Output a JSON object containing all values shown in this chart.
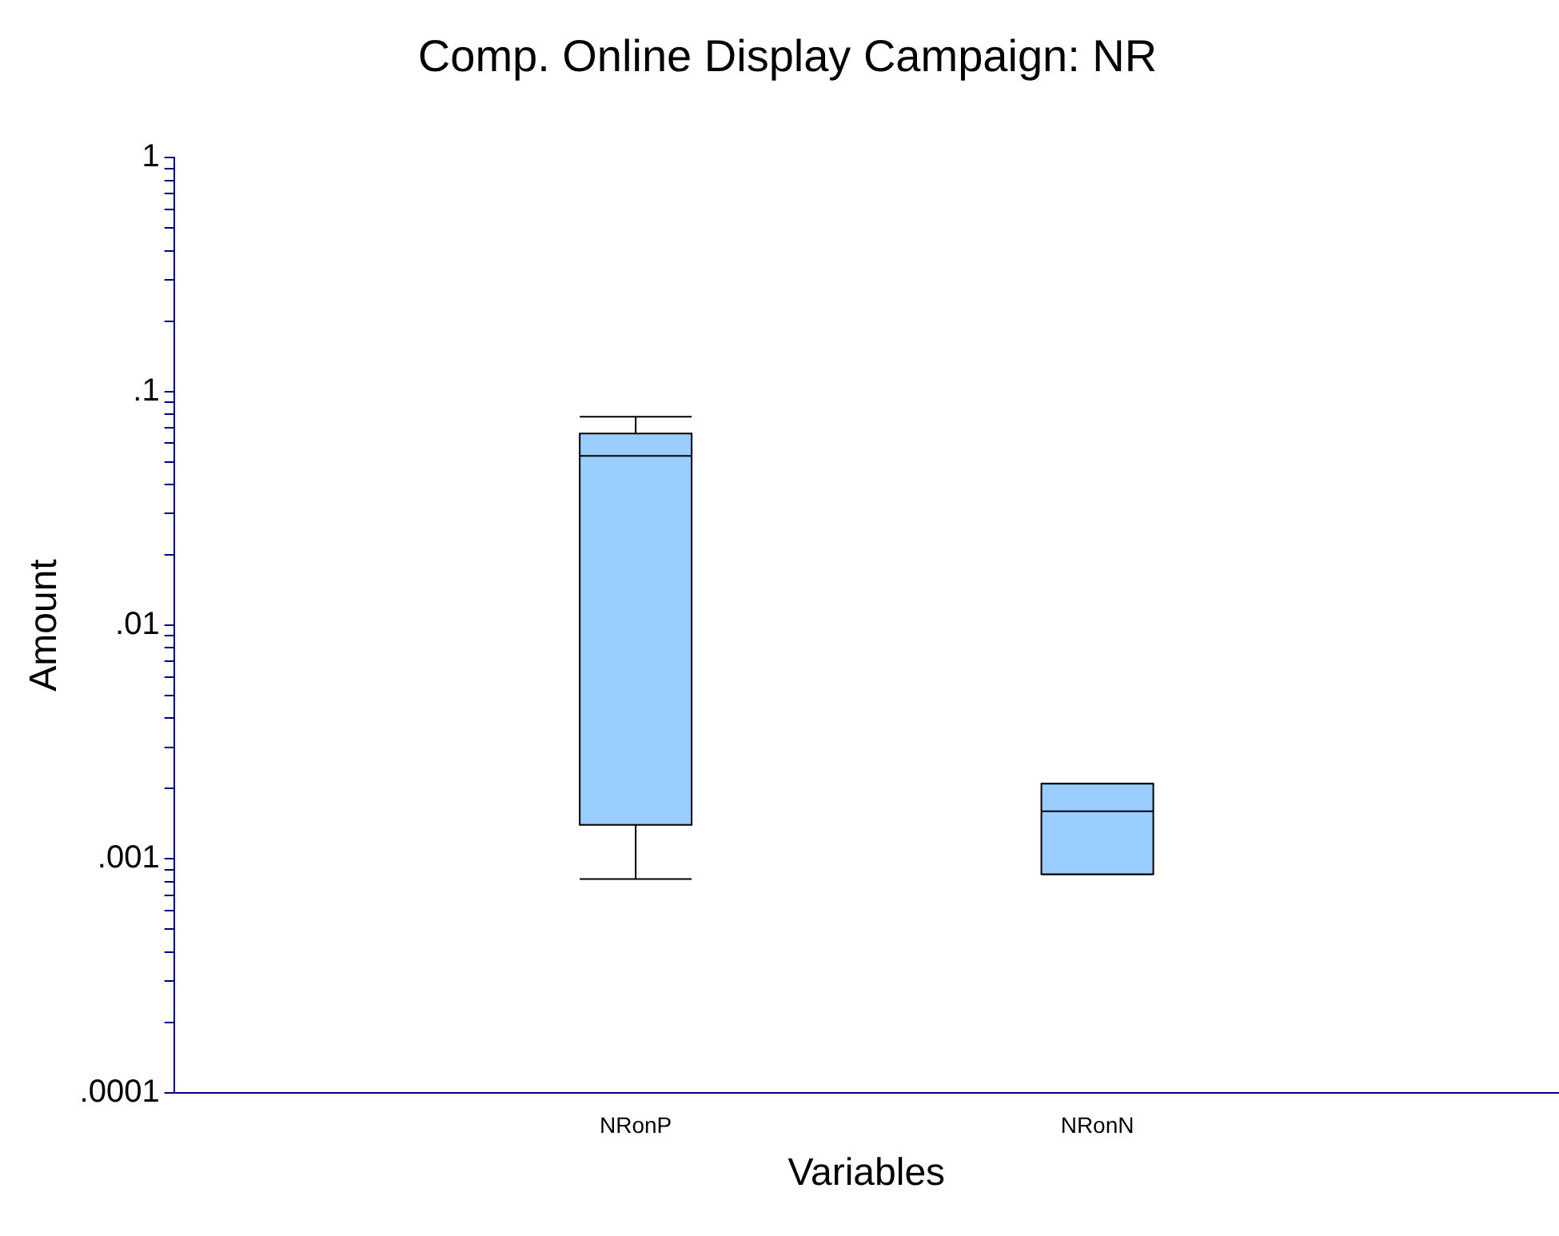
{
  "chart_data": {
    "type": "box",
    "title": "Comp. Online Display Campaign: NR",
    "xlabel": "Variables",
    "ylabel": "Amount",
    "categories": [
      "NRonP",
      "NRonN"
    ],
    "color": "#99ccff",
    "log": true,
    "grid": false,
    "legend": false,
    "boxes": [
      {
        "low": 0.00082,
        "q1": 0.0014,
        "median": 0.053,
        "q3": 0.066,
        "high": 0.078
      },
      {
        "low": 0.00086,
        "q1": 0.00086,
        "median": 0.0016,
        "q3": 0.0021,
        "high": 0.0021
      }
    ],
    "ylim": [
      0.0001,
      1
    ],
    "yticks": [
      {
        "value": 0.0001,
        "label": ".0001"
      },
      {
        "value": 0.0002,
        "label": null
      },
      {
        "value": 0.0003,
        "label": null
      },
      {
        "value": 0.0004,
        "label": null
      },
      {
        "value": 0.0005,
        "label": null
      },
      {
        "value": 0.0006,
        "label": null
      },
      {
        "value": 0.0007,
        "label": null
      },
      {
        "value": 0.0008,
        "label": null
      },
      {
        "value": 0.0009,
        "label": null
      },
      {
        "value": 0.001,
        "label": ".001"
      },
      {
        "value": 0.002,
        "label": null
      },
      {
        "value": 0.003,
        "label": null
      },
      {
        "value": 0.004,
        "label": null
      },
      {
        "value": 0.005,
        "label": null
      },
      {
        "value": 0.006,
        "label": null
      },
      {
        "value": 0.007,
        "label": null
      },
      {
        "value": 0.008,
        "label": null
      },
      {
        "value": 0.009,
        "label": null
      },
      {
        "value": 0.01,
        "label": ".01"
      },
      {
        "value": 0.02,
        "label": null
      },
      {
        "value": 0.03,
        "label": null
      },
      {
        "value": 0.04,
        "label": null
      },
      {
        "value": 0.05,
        "label": null
      },
      {
        "value": 0.06,
        "label": null
      },
      {
        "value": 0.07,
        "label": null
      },
      {
        "value": 0.08,
        "label": null
      },
      {
        "value": 0.09,
        "label": null
      },
      {
        "value": 0.1,
        "label": ".1"
      },
      {
        "value": 0.2,
        "label": null
      },
      {
        "value": 0.3,
        "label": null
      },
      {
        "value": 0.4,
        "label": null
      },
      {
        "value": 0.5,
        "label": null
      },
      {
        "value": 0.6,
        "label": null
      },
      {
        "value": 0.7,
        "label": null
      },
      {
        "value": 0.8,
        "label": null
      },
      {
        "value": 0.9,
        "label": null
      },
      {
        "value": 1,
        "label": "1"
      }
    ]
  }
}
